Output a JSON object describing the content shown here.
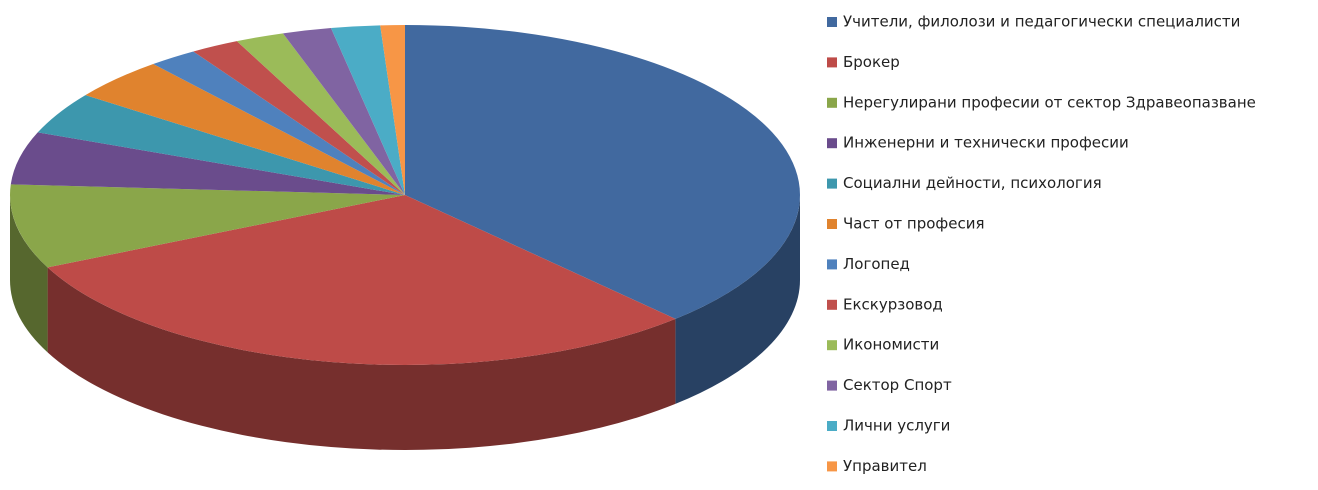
{
  "chart_data": {
    "type": "pie",
    "categories": [
      "Учители, филолози и педагогически специалисти",
      "Брокер",
      "Нерегулирани професии от сектор Здравеопазване",
      "Инженерни и технически професии",
      "Социални дейности, психология",
      "Част от професия",
      "Логопед",
      "Екскурзовод",
      "Икономисти",
      "Сектор Спорт",
      "Лични услуги",
      "Управител"
    ],
    "values": [
      38,
      30,
      8,
      5,
      4,
      4,
      2,
      2,
      2,
      2,
      2,
      1
    ],
    "colors": [
      "#41699f",
      "#be4b48",
      "#8aa64a",
      "#6a4c8c",
      "#3d97ad",
      "#e0832e",
      "#4f81bd",
      "#c0504d",
      "#9bbb59",
      "#8064a2",
      "#4bacc6",
      "#f79646"
    ],
    "legend": "right"
  }
}
